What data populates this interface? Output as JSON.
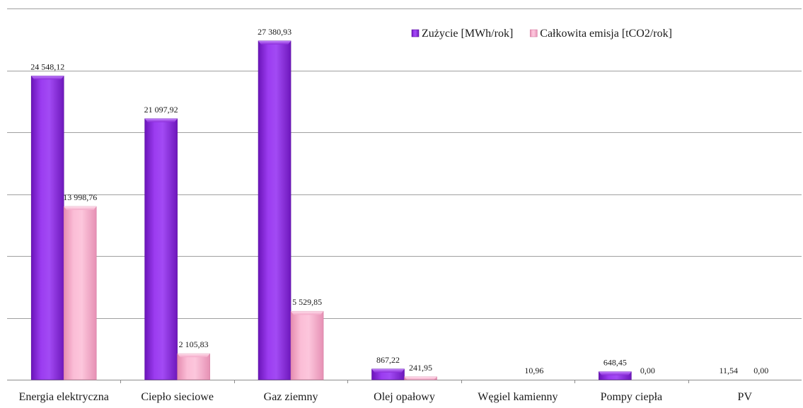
{
  "chart_data": {
    "type": "bar",
    "title": "",
    "xlabel": "",
    "ylabel": "",
    "ylim": [
      0,
      30000
    ],
    "grid": true,
    "legend_position": "top-right",
    "categories": [
      "Energia elektryczna",
      "Ciepło sieciowe",
      "Gaz ziemny",
      "Olej opałowy",
      "Węgiel kamienny",
      "Pompy ciepła",
      "PV"
    ],
    "series": [
      {
        "name": "Zużycie [MWh/rok]",
        "color": "#8b2be2",
        "values": [
          24548.12,
          21097.92,
          27380.93,
          867.22,
          0,
          648.45,
          11.54
        ],
        "labels": [
          "24 548,12",
          "21 097,92",
          "27 380,93",
          "867,22",
          "",
          "648,45",
          "11,54"
        ]
      },
      {
        "name": "Całkowita emisja [tCO2/rok]",
        "color": "#f4aac8",
        "values": [
          13998.76,
          2105.83,
          5529.85,
          241.95,
          10.96,
          0,
          0
        ],
        "labels": [
          "13 998,76",
          "2 105,83",
          "5 529,85",
          "241,95",
          "10,96",
          "0,00",
          "0,00"
        ]
      }
    ]
  }
}
